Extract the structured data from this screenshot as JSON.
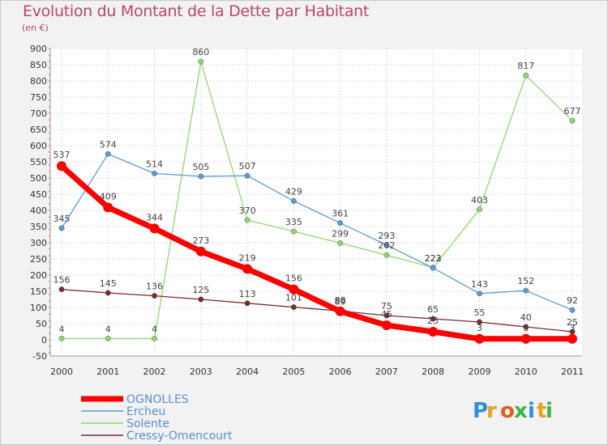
{
  "title": "Evolution du Montant de la Dette par Habitant",
  "subtitle": "(en €)",
  "brand": {
    "letters": [
      "P",
      "r",
      "o",
      "x",
      "i",
      "t",
      "i"
    ],
    "colors": [
      "#2d8fd8",
      "#e8a020",
      "#e85a20",
      "#3cb44b",
      "#2d8fd8",
      "#e8a020",
      "#3cb44b"
    ]
  },
  "chart_data": {
    "type": "line",
    "categories": [
      "2000",
      "2001",
      "2002",
      "2003",
      "2004",
      "2005",
      "2006",
      "2007",
      "2008",
      "2009",
      "2010",
      "2011"
    ],
    "ylim": [
      -50,
      900
    ],
    "yticks": [
      -50,
      0,
      50,
      100,
      150,
      200,
      250,
      300,
      350,
      400,
      450,
      500,
      550,
      600,
      650,
      700,
      750,
      800,
      850,
      900
    ],
    "grid": true,
    "legend_position": "bottom-left",
    "series": [
      {
        "name": "OGNOLLES",
        "color": "#ff0000",
        "values": [
          537,
          409,
          344,
          273,
          219,
          156,
          88,
          45,
          25,
          3,
          3,
          3
        ]
      },
      {
        "name": "Ercheu",
        "color": "#5b9bd5",
        "values": [
          345,
          574,
          514,
          505,
          507,
          429,
          361,
          293,
          222,
          143,
          152,
          92
        ]
      },
      {
        "name": "Solente",
        "color": "#90d870",
        "values": [
          4,
          4,
          4,
          860,
          370,
          335,
          299,
          262,
          223,
          403,
          817,
          677
        ]
      },
      {
        "name": "Cressy-Omencourt",
        "color": "#7b2a2a",
        "values": [
          156,
          145,
          136,
          125,
          113,
          101,
          89,
          75,
          65,
          55,
          40,
          25
        ]
      }
    ]
  }
}
